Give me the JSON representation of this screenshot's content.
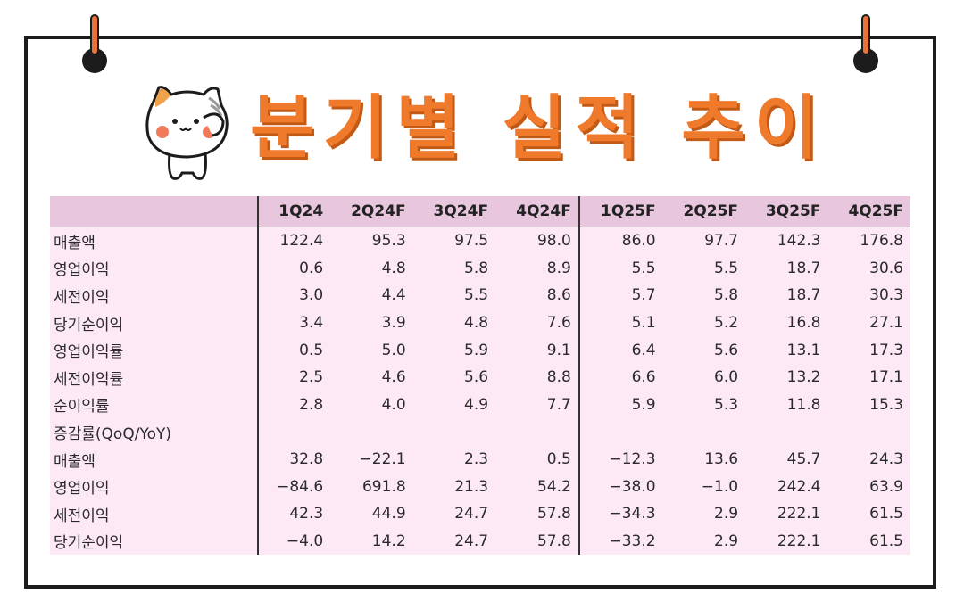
{
  "title": "분기별 실적 추이",
  "columns": [
    "1Q24",
    "2Q24F",
    "3Q24F",
    "4Q24F",
    "1Q25F",
    "2Q25F",
    "3Q25F",
    "4Q25F"
  ],
  "rows": [
    {
      "label": "매출액",
      "values": [
        "122.4",
        "95.3",
        "97.5",
        "98.0",
        "86.0",
        "97.7",
        "142.3",
        "176.8"
      ]
    },
    {
      "label": "영업이익",
      "values": [
        "0.6",
        "4.8",
        "5.8",
        "8.9",
        "5.5",
        "5.5",
        "18.7",
        "30.6"
      ]
    },
    {
      "label": "세전이익",
      "values": [
        "3.0",
        "4.4",
        "5.5",
        "8.6",
        "5.7",
        "5.8",
        "18.7",
        "30.3"
      ]
    },
    {
      "label": "당기순이익",
      "values": [
        "3.4",
        "3.9",
        "4.8",
        "7.6",
        "5.1",
        "5.2",
        "16.8",
        "27.1"
      ]
    },
    {
      "label": "영업이익률",
      "values": [
        "0.5",
        "5.0",
        "5.9",
        "9.1",
        "6.4",
        "5.6",
        "13.1",
        "17.3"
      ]
    },
    {
      "label": "세전이익률",
      "values": [
        "2.5",
        "4.6",
        "5.6",
        "8.8",
        "6.6",
        "6.0",
        "13.2",
        "17.1"
      ]
    },
    {
      "label": "순이익률",
      "values": [
        "2.8",
        "4.0",
        "4.9",
        "7.7",
        "5.9",
        "5.3",
        "11.8",
        "15.3"
      ]
    },
    {
      "label": "증감률(QoQ/YoY)",
      "values": [
        "",
        "",
        "",
        "",
        "",
        "",
        "",
        ""
      ]
    },
    {
      "label": "매출액",
      "values": [
        "32.8",
        "−22.1",
        "2.3",
        "0.5",
        "−12.3",
        "13.6",
        "45.7",
        "24.3"
      ]
    },
    {
      "label": "영업이익",
      "values": [
        "−84.6",
        "691.8",
        "21.3",
        "54.2",
        "−38.0",
        "−1.0",
        "242.4",
        "63.9"
      ]
    },
    {
      "label": "세전이익",
      "values": [
        "42.3",
        "44.9",
        "24.7",
        "57.8",
        "−34.3",
        "2.9",
        "222.1",
        "61.5"
      ]
    },
    {
      "label": "당기순이익",
      "values": [
        "−4.0",
        "14.2",
        "24.7",
        "57.8",
        "−33.2",
        "2.9",
        "222.1",
        "61.5"
      ]
    }
  ],
  "colors": {
    "accent": "#f07a2c",
    "header_bg": "#e8c6dd",
    "table_bg": "#fde8f6"
  },
  "icons": {
    "mascot": "cat-mascot-icon",
    "pins": "pin-icon"
  }
}
